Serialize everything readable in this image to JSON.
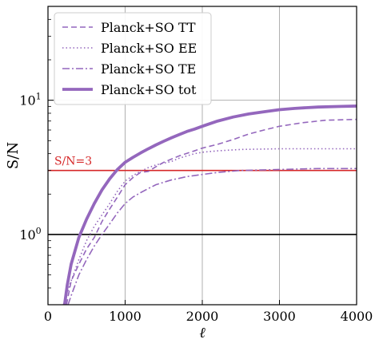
{
  "chart_data": {
    "type": "line",
    "xlabel": "ℓ",
    "ylabel": "S/N",
    "xlim": [
      0,
      4000
    ],
    "ylim": [
      0.3,
      50
    ],
    "yscale": "log",
    "x_ticks": [
      0,
      1000,
      2000,
      3000,
      4000
    ],
    "x_tick_labels": [
      "0",
      "1000",
      "2000",
      "3000",
      "4000"
    ],
    "y_major_ticks": [
      1,
      10
    ],
    "y_tick_labels": [
      "10^0",
      "10^1"
    ],
    "grid": true,
    "legend_position": "top-left",
    "colors": {
      "series": "#9467bd",
      "threshold": "#d62728",
      "unity": "#000000",
      "grid": "#b0b0b0"
    },
    "series": [
      {
        "name": "Planck+SO TT",
        "style": "dashed",
        "x": [
          240,
          300,
          400,
          500,
          600,
          700,
          800,
          900,
          1000,
          1100,
          1200,
          1300,
          1400,
          1500,
          1700,
          1900,
          2000,
          2200,
          2400,
          2600,
          2800,
          3000,
          3300,
          3600,
          3800,
          4000
        ],
        "y": [
          0.3,
          0.45,
          0.6,
          0.78,
          0.95,
          1.25,
          1.55,
          1.9,
          2.35,
          2.65,
          2.9,
          2.95,
          3.2,
          3.45,
          3.85,
          4.2,
          4.4,
          4.7,
          5.1,
          5.6,
          6.0,
          6.4,
          6.8,
          7.1,
          7.15,
          7.2
        ]
      },
      {
        "name": "Planck+SO EE",
        "style": "dotted",
        "x": [
          200,
          300,
          400,
          500,
          600,
          700,
          800,
          900,
          1000,
          1100,
          1200,
          1300,
          1400,
          1500,
          1600,
          1700,
          1800,
          1900,
          2000,
          2200,
          2500,
          3000,
          3500,
          4000
        ],
        "y": [
          0.3,
          0.45,
          0.65,
          0.9,
          1.15,
          1.4,
          1.7,
          2.1,
          2.5,
          2.75,
          2.95,
          3.15,
          3.3,
          3.4,
          3.5,
          3.7,
          3.85,
          4.0,
          4.1,
          4.2,
          4.3,
          4.35,
          4.35,
          4.35
        ]
      },
      {
        "name": "Planck+SO TE",
        "style": "dashdot",
        "x": [
          260,
          300,
          400,
          500,
          600,
          700,
          800,
          900,
          1000,
          1100,
          1200,
          1300,
          1400,
          1500,
          1600,
          1700,
          1800,
          1900,
          2000,
          2200,
          2500,
          3000,
          3500,
          4000
        ],
        "y": [
          0.3,
          0.35,
          0.5,
          0.65,
          0.82,
          1.0,
          1.2,
          1.45,
          1.7,
          1.9,
          2.05,
          2.2,
          2.35,
          2.45,
          2.55,
          2.62,
          2.7,
          2.75,
          2.8,
          2.9,
          3.0,
          3.05,
          3.1,
          3.1
        ]
      },
      {
        "name": "Planck+SO tot",
        "style": "solid-thick",
        "x": [
          215,
          250,
          300,
          400,
          500,
          600,
          700,
          800,
          900,
          1000,
          1100,
          1200,
          1300,
          1400,
          1500,
          1600,
          1700,
          1800,
          1900,
          2000,
          2200,
          2400,
          2600,
          2800,
          3000,
          3200,
          3500,
          3800,
          4000
        ],
        "y": [
          0.3,
          0.42,
          0.6,
          0.95,
          1.3,
          1.7,
          2.15,
          2.6,
          3.05,
          3.45,
          3.75,
          4.05,
          4.35,
          4.65,
          4.95,
          5.25,
          5.55,
          5.85,
          6.1,
          6.4,
          7.0,
          7.5,
          7.9,
          8.2,
          8.5,
          8.7,
          8.9,
          9.0,
          9.05
        ]
      }
    ],
    "reference_lines": [
      {
        "label": "S/N=3",
        "y": 3,
        "color": "#d62728"
      },
      {
        "y": 1,
        "color": "#000000"
      }
    ]
  }
}
